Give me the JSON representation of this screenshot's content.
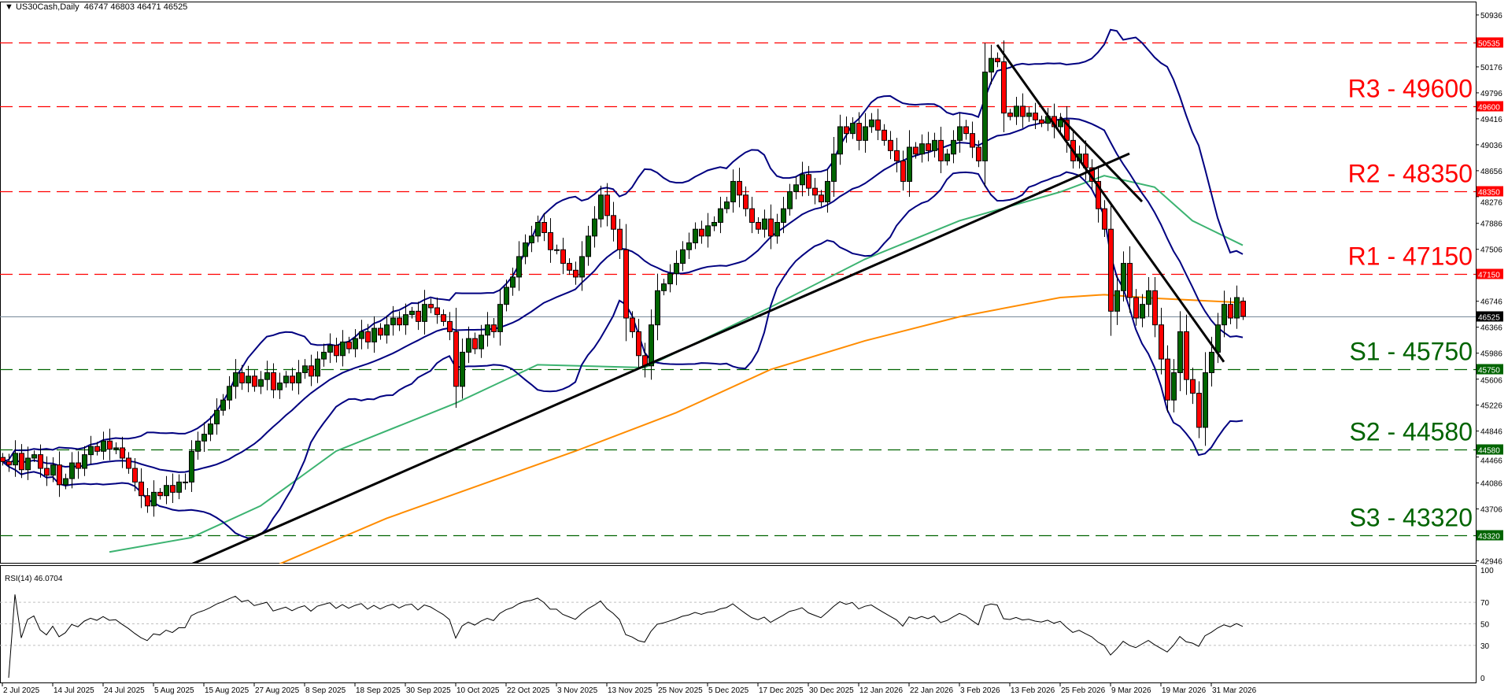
{
  "header": {
    "symbol": "US30Cash,Daily",
    "ohlc_text": "46747 46803 46471 46525"
  },
  "rsi_label": "RSI(14) 46.0704",
  "colors": {
    "bull": "#006400",
    "bear": "#ff0000",
    "bollinger": "#000080",
    "ma_green": "#3cb371",
    "ma_orange": "#ff8c00",
    "resistance": "#ff0000",
    "support": "#006400",
    "current_price": "#778899",
    "trendline": "#000000"
  },
  "chart_data": [
    {
      "type": "candlestick",
      "title": "US30Cash,Daily",
      "ylim": [
        42906,
        51120
      ],
      "y_ticks": [
        50936,
        50176,
        49796,
        49416,
        49036,
        48656,
        48276,
        47886,
        47506,
        46746,
        46366,
        45986,
        45606,
        45226,
        44846,
        44466,
        44086,
        43706,
        42946
      ],
      "x_ticks": [
        {
          "bar": 0,
          "label": "2 Jul 2025"
        },
        {
          "bar": 8,
          "label": "14 Jul 2025"
        },
        {
          "bar": 16,
          "label": "24 Jul 2025"
        },
        {
          "bar": 24,
          "label": "5 Aug 2025"
        },
        {
          "bar": 32,
          "label": "15 Aug 2025"
        },
        {
          "bar": 40,
          "label": "27 Aug 2025"
        },
        {
          "bar": 48,
          "label": "8 Sep 2025"
        },
        {
          "bar": 56,
          "label": "18 Sep 2025"
        },
        {
          "bar": 64,
          "label": "30 Sep 2025"
        },
        {
          "bar": 72,
          "label": "10 Oct 2025"
        },
        {
          "bar": 80,
          "label": "22 Oct 2025"
        },
        {
          "bar": 88,
          "label": "3 Nov 2025"
        },
        {
          "bar": 96,
          "label": "13 Nov 2025"
        },
        {
          "bar": 104,
          "label": "25 Nov 2025"
        },
        {
          "bar": 112,
          "label": "5 Dec 2025"
        },
        {
          "bar": 120,
          "label": "17 Dec 2025"
        },
        {
          "bar": 128,
          "label": "30 Dec 2025"
        },
        {
          "bar": 136,
          "label": "12 Jan 2026"
        },
        {
          "bar": 144,
          "label": "22 Jan 2026"
        },
        {
          "bar": 152,
          "label": "3 Feb 2026"
        },
        {
          "bar": 160,
          "label": "13 Feb 2026"
        },
        {
          "bar": 168,
          "label": "25 Feb 2026"
        },
        {
          "bar": 176,
          "label": "9 Mar 2026"
        },
        {
          "bar": 184,
          "label": "19 Mar 2026"
        },
        {
          "bar": 192,
          "label": "31 Mar 2026"
        }
      ],
      "closes": [
        44400,
        44350,
        44520,
        44280,
        44450,
        44500,
        44300,
        44200,
        44350,
        44060,
        44150,
        44380,
        44300,
        44500,
        44620,
        44550,
        44700,
        44580,
        44600,
        44450,
        44300,
        44100,
        43900,
        43750,
        43950,
        43900,
        44050,
        43950,
        44100,
        44100,
        44550,
        44700,
        44800,
        44950,
        45150,
        45300,
        45500,
        45700,
        45550,
        45650,
        45500,
        45600,
        45700,
        45450,
        45550,
        45650,
        45550,
        45700,
        45800,
        45650,
        45900,
        46000,
        46100,
        45950,
        46150,
        46050,
        46200,
        46300,
        46150,
        46350,
        46250,
        46400,
        46500,
        46400,
        46550,
        46600,
        46450,
        46700,
        46650,
        46550,
        46450,
        46300,
        45500,
        46000,
        46200,
        46050,
        46250,
        46400,
        46300,
        46700,
        46950,
        47100,
        47400,
        47600,
        47700,
        47900,
        47750,
        47500,
        47500,
        47300,
        47200,
        47100,
        47400,
        47700,
        47950,
        48300,
        48000,
        47800,
        47500,
        46500,
        46300,
        45950,
        45800,
        46400,
        46900,
        47000,
        47150,
        47300,
        47500,
        47600,
        47800,
        47700,
        47850,
        47900,
        48100,
        48200,
        48500,
        48300,
        48100,
        47900,
        47800,
        47950,
        47700,
        47900,
        48100,
        48350,
        48450,
        48600,
        48400,
        48300,
        48200,
        48500,
        48900,
        49300,
        49200,
        49350,
        49100,
        49300,
        49400,
        49250,
        49100,
        48950,
        48800,
        48500,
        49000,
        48900,
        49050,
        48950,
        49100,
        48800,
        48900,
        49100,
        49300,
        49200,
        49000,
        48800,
        50100,
        50300,
        50250,
        49500,
        49450,
        49600,
        49450,
        49500,
        49400,
        49350,
        49450,
        49300,
        49400,
        49100,
        48800,
        48900,
        48700,
        48500,
        48100,
        47800,
        46600,
        46900,
        47300,
        46800,
        46500,
        46700,
        46900,
        46400,
        45900,
        45300,
        45700,
        46300,
        45600,
        45400,
        44900,
        45700,
        46000,
        46400,
        46700,
        46500,
        46800,
        46525
      ],
      "last_bar": {
        "open": 46747,
        "high": 46803,
        "low": 46471,
        "close": 46525
      },
      "current_price": 46525,
      "levels": [
        {
          "value": 50535,
          "kind": "resistance",
          "text": "",
          "tag": "50535"
        },
        {
          "value": 49600,
          "kind": "resistance",
          "text": "R3 - 49600",
          "tag": "49600"
        },
        {
          "value": 48350,
          "kind": "resistance",
          "text": "R2 - 48350",
          "tag": "48350"
        },
        {
          "value": 47150,
          "kind": "resistance",
          "text": "R1 - 47150",
          "tag": "47150"
        },
        {
          "value": 45750,
          "kind": "support",
          "text": "S1 - 45750",
          "tag": "45750"
        },
        {
          "value": 44580,
          "kind": "support",
          "text": "S2 - 44580",
          "tag": "44580"
        },
        {
          "value": 43320,
          "kind": "support",
          "text": "S3 - 43320",
          "tag": "43320"
        }
      ],
      "current_tag": "46525",
      "bollinger": {
        "period": 20,
        "deviations": 2
      },
      "ma_green": [
        [
          17,
          43076
        ],
        [
          30,
          43287
        ],
        [
          41,
          43751
        ],
        [
          53,
          44552
        ],
        [
          72,
          45254
        ],
        [
          85,
          45816
        ],
        [
          102,
          45774
        ],
        [
          122,
          46659
        ],
        [
          137,
          47361
        ],
        [
          152,
          47924
        ],
        [
          168,
          48345
        ],
        [
          175,
          48584
        ],
        [
          183,
          48415
        ],
        [
          189,
          47924
        ],
        [
          197,
          47565
        ]
      ],
      "ma_orange": [
        [
          44,
          42900
        ],
        [
          61,
          43568
        ],
        [
          76,
          44060
        ],
        [
          91,
          44552
        ],
        [
          107,
          45114
        ],
        [
          122,
          45746
        ],
        [
          137,
          46167
        ],
        [
          152,
          46519
        ],
        [
          168,
          46800
        ],
        [
          175,
          46842
        ],
        [
          183,
          46790
        ],
        [
          197,
          46725
        ]
      ],
      "trendlines": [
        [
          [
            30,
            42894
          ],
          [
            179,
            48907
          ]
        ],
        [
          [
            158,
            50498
          ],
          [
            194,
            45858
          ]
        ],
        [
          [
            168,
            49441
          ],
          [
            181,
            48205
          ]
        ]
      ]
    },
    {
      "type": "line",
      "title": "RSI(14) 46.0704",
      "ylim": [
        0,
        100
      ],
      "y_ticks": [
        100,
        70,
        50,
        30,
        0
      ],
      "period": 14,
      "last_value": 46.0704
    }
  ]
}
